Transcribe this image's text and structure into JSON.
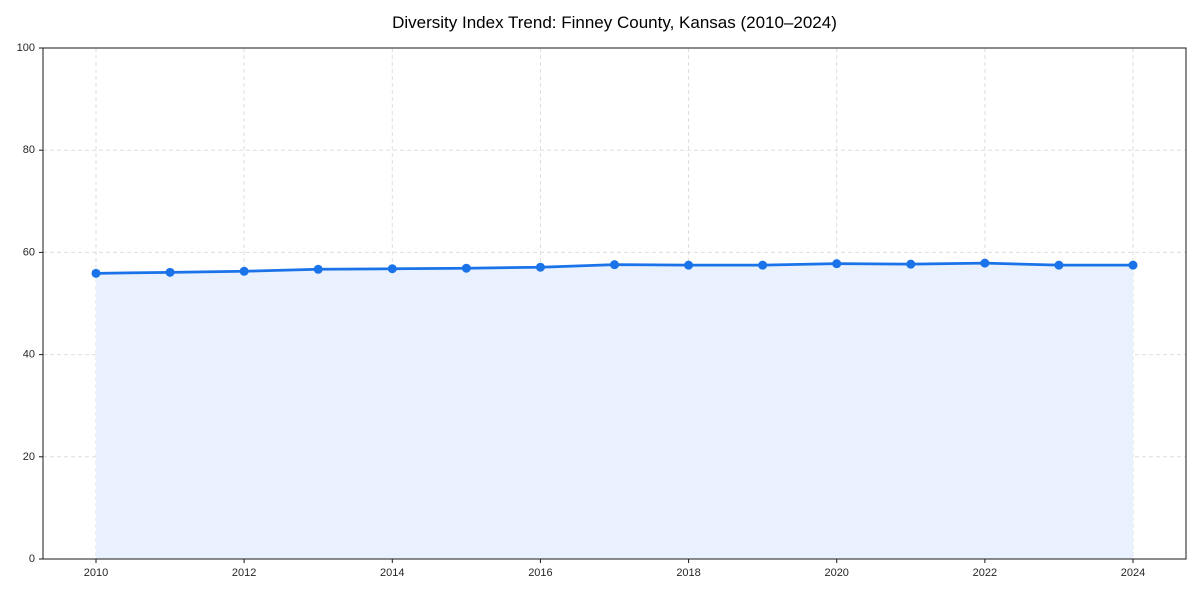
{
  "page": {
    "background": "#ffffff"
  },
  "chart_data": {
    "type": "area",
    "title": "Diversity Index Trend: Finney County, Kansas (2010–2024)",
    "x": [
      2010,
      2011,
      2012,
      2013,
      2014,
      2015,
      2016,
      2017,
      2018,
      2019,
      2020,
      2021,
      2022,
      2023,
      2024
    ],
    "series": [
      {
        "name": "Diversity Index",
        "values": [
          55.9,
          56.1,
          56.3,
          56.7,
          56.8,
          56.9,
          57.1,
          57.6,
          57.5,
          57.5,
          57.8,
          57.7,
          57.9,
          57.5,
          57.5
        ]
      }
    ],
    "xlabel": "",
    "ylabel": "",
    "ylim": [
      0,
      100
    ],
    "yticks": [
      0,
      20,
      40,
      60,
      80,
      100
    ],
    "xticks": [
      2010,
      2012,
      2014,
      2016,
      2018,
      2020,
      2022,
      2024
    ],
    "grid": true,
    "grid_style": "dashed",
    "legend": false,
    "line_color": "#1a73e8",
    "fill_color": "#e8f1fd",
    "grid_color": "#dedede",
    "spine_color": "#1a1a1a",
    "tick_label_color": "#262626",
    "title_color": "#000000"
  }
}
